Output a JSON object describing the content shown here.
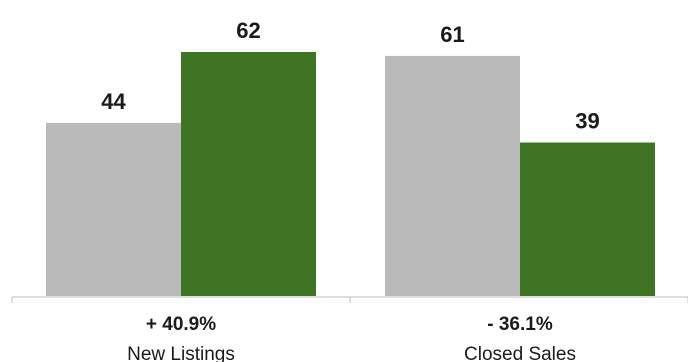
{
  "chart_data": {
    "type": "bar",
    "categories": [
      "New Listings",
      "Closed Sales"
    ],
    "series": [
      {
        "values": [
          44,
          61
        ],
        "color": "#bababa"
      },
      {
        "values": [
          62,
          39
        ],
        "color": "#3f7424"
      }
    ],
    "change_labels": [
      "+ 40.9%",
      "- 36.1%"
    ],
    "ylim": [
      0,
      62
    ],
    "grid": false,
    "legend": "none",
    "axis_color": "#bfbfbf"
  }
}
